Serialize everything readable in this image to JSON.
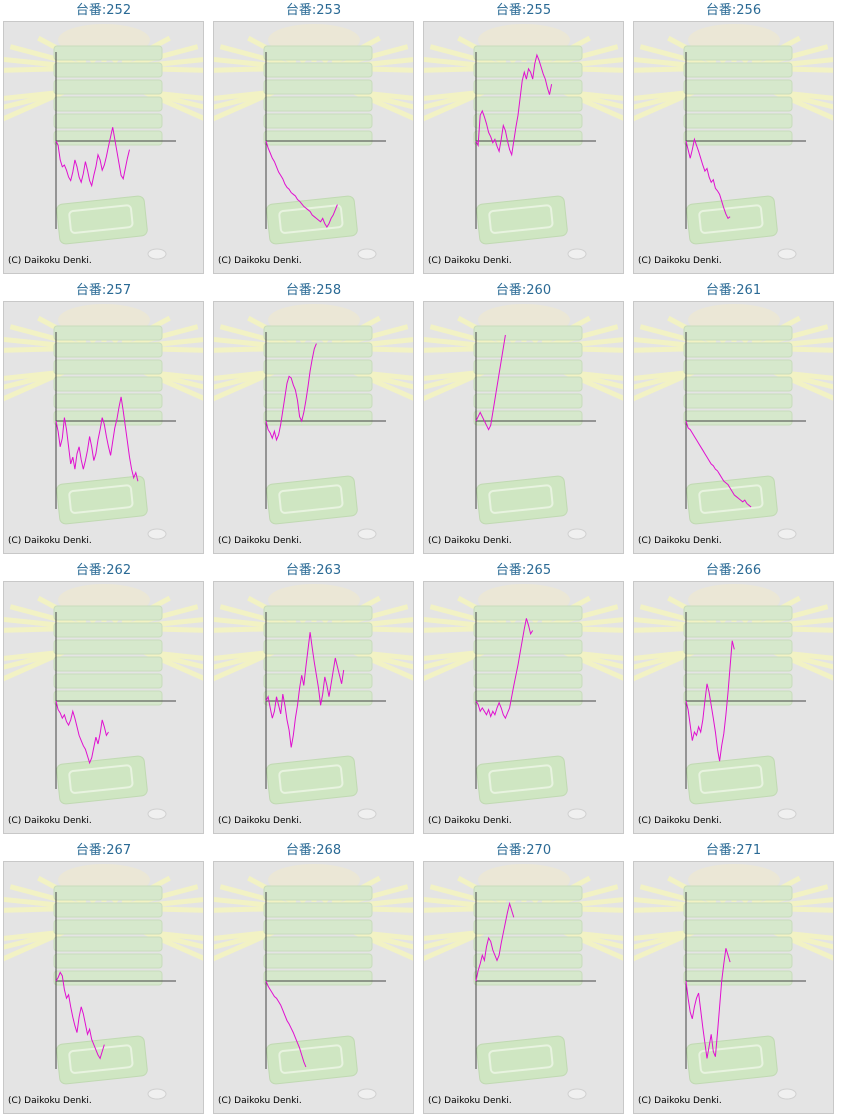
{
  "cell_title_prefix": "台番:",
  "copyright": "(C) Daikoku Denki.",
  "colors": {
    "title": "#2a6a95",
    "line": "#e010d0",
    "axis": "#444444",
    "panel": "#e4e4e4"
  },
  "chart_data": [
    {
      "type": "line",
      "title": "台番:252",
      "values": [
        0,
        -0.05,
        -0.22,
        -0.3,
        -0.28,
        -0.34,
        -0.42,
        -0.46,
        -0.36,
        -0.22,
        -0.3,
        -0.42,
        -0.48,
        -0.38,
        -0.24,
        -0.34,
        -0.46,
        -0.52,
        -0.4,
        -0.3,
        -0.16,
        -0.22,
        -0.34,
        -0.28,
        -0.18,
        -0.06,
        0.05,
        0.16,
        0.02,
        -0.12,
        -0.26,
        -0.4,
        -0.44,
        -0.32,
        -0.2,
        -0.1
      ]
    },
    {
      "type": "line",
      "title": "台番:253",
      "values": [
        0,
        -0.08,
        -0.14,
        -0.2,
        -0.24,
        -0.3,
        -0.36,
        -0.4,
        -0.44,
        -0.5,
        -0.54,
        -0.56,
        -0.6,
        -0.62,
        -0.64,
        -0.68,
        -0.7,
        -0.73,
        -0.76,
        -0.78,
        -0.8,
        -0.82,
        -0.86,
        -0.88,
        -0.9,
        -0.92,
        -0.94,
        -0.9,
        -0.96,
        -1.0,
        -0.96,
        -0.9,
        -0.86,
        -0.8,
        -0.74
      ]
    },
    {
      "type": "line",
      "title": "台番:255",
      "values": [
        0,
        -0.05,
        0.3,
        0.35,
        0.28,
        0.2,
        0.1,
        0.05,
        -0.02,
        0.02,
        -0.06,
        -0.12,
        0.02,
        0.18,
        0.12,
        0.0,
        -0.1,
        -0.16,
        0.0,
        0.16,
        0.3,
        0.5,
        0.7,
        0.8,
        0.72,
        0.84,
        0.8,
        0.72,
        0.9,
        1.0,
        0.94,
        0.86,
        0.78,
        0.72,
        0.62,
        0.54,
        0.66
      ]
    },
    {
      "type": "line",
      "title": "台番:256",
      "values": [
        0,
        -0.1,
        -0.2,
        -0.1,
        0.02,
        -0.05,
        -0.12,
        -0.2,
        -0.28,
        -0.35,
        -0.32,
        -0.42,
        -0.48,
        -0.45,
        -0.55,
        -0.58,
        -0.62,
        -0.7,
        -0.78,
        -0.85,
        -0.9,
        -0.88
      ]
    },
    {
      "type": "line",
      "title": "台番:257",
      "values": [
        0,
        -0.12,
        -0.3,
        -0.2,
        0.04,
        -0.1,
        -0.3,
        -0.5,
        -0.42,
        -0.56,
        -0.38,
        -0.3,
        -0.45,
        -0.56,
        -0.46,
        -0.34,
        -0.18,
        -0.3,
        -0.46,
        -0.38,
        -0.22,
        -0.1,
        0.04,
        -0.04,
        -0.18,
        -0.3,
        -0.4,
        -0.24,
        -0.08,
        0.02,
        0.16,
        0.28,
        0.12,
        -0.06,
        -0.24,
        -0.42,
        -0.56,
        -0.66,
        -0.6,
        -0.7
      ]
    },
    {
      "type": "line",
      "title": "台番:258",
      "values": [
        0,
        -0.1,
        -0.14,
        -0.2,
        -0.12,
        -0.22,
        -0.16,
        -0.04,
        0.12,
        0.28,
        0.44,
        0.52,
        0.5,
        0.42,
        0.36,
        0.24,
        0.05,
        0.0,
        0.1,
        0.24,
        0.4,
        0.58,
        0.72,
        0.84,
        0.9
      ]
    },
    {
      "type": "line",
      "title": "台番:260",
      "values": [
        0,
        0.05,
        0.1,
        0.05,
        0.0,
        -0.05,
        -0.1,
        -0.05,
        0.1,
        0.25,
        0.4,
        0.55,
        0.7,
        0.85,
        1.0
      ]
    },
    {
      "type": "line",
      "title": "台番:261",
      "values": [
        0,
        -0.08,
        -0.1,
        -0.14,
        -0.18,
        -0.22,
        -0.26,
        -0.3,
        -0.34,
        -0.38,
        -0.42,
        -0.46,
        -0.5,
        -0.52,
        -0.56,
        -0.58,
        -0.62,
        -0.66,
        -0.7,
        -0.72,
        -0.74,
        -0.78,
        -0.82,
        -0.86,
        -0.88,
        -0.9,
        -0.92,
        -0.94,
        -0.92,
        -0.96,
        -0.98,
        -1.0
      ]
    },
    {
      "type": "line",
      "title": "台番:262",
      "values": [
        0,
        -0.1,
        -0.14,
        -0.2,
        -0.16,
        -0.24,
        -0.28,
        -0.22,
        -0.12,
        -0.2,
        -0.3,
        -0.4,
        -0.46,
        -0.52,
        -0.56,
        -0.64,
        -0.72,
        -0.66,
        -0.54,
        -0.42,
        -0.5,
        -0.38,
        -0.22,
        -0.3,
        -0.4,
        -0.36
      ]
    },
    {
      "type": "line",
      "title": "台番:263",
      "values": [
        0,
        0.05,
        -0.08,
        -0.2,
        -0.12,
        0.05,
        -0.05,
        -0.15,
        0.08,
        -0.05,
        -0.22,
        -0.34,
        -0.54,
        -0.4,
        -0.2,
        -0.05,
        0.15,
        0.3,
        0.18,
        0.4,
        0.6,
        0.8,
        0.62,
        0.45,
        0.3,
        0.15,
        -0.05,
        0.08,
        0.28,
        0.18,
        0.05,
        0.2,
        0.35,
        0.5,
        0.4,
        0.3,
        0.2,
        0.36
      ]
    },
    {
      "type": "line",
      "title": "台番:265",
      "values": [
        0,
        -0.04,
        -0.12,
        -0.08,
        -0.12,
        -0.16,
        -0.1,
        -0.18,
        -0.12,
        -0.16,
        -0.08,
        -0.02,
        -0.08,
        -0.16,
        -0.2,
        -0.14,
        -0.08,
        0.05,
        0.18,
        0.3,
        0.42,
        0.56,
        0.7,
        0.84,
        0.96,
        0.88,
        0.78,
        0.82
      ]
    },
    {
      "type": "line",
      "title": "台番:266",
      "values": [
        0,
        -0.1,
        -0.28,
        -0.46,
        -0.36,
        -0.4,
        -0.3,
        -0.36,
        -0.22,
        0.0,
        0.2,
        0.1,
        -0.05,
        -0.2,
        -0.36,
        -0.56,
        -0.7,
        -0.52,
        -0.38,
        -0.16,
        0.1,
        0.4,
        0.7,
        0.6
      ]
    },
    {
      "type": "line",
      "title": "台番:267",
      "values": [
        0,
        0.04,
        0.1,
        0.06,
        -0.1,
        -0.2,
        -0.16,
        -0.3,
        -0.42,
        -0.52,
        -0.6,
        -0.42,
        -0.3,
        -0.38,
        -0.5,
        -0.62,
        -0.56,
        -0.68,
        -0.74,
        -0.8,
        -0.86,
        -0.9,
        -0.82,
        -0.74
      ]
    },
    {
      "type": "line",
      "title": "台番:268",
      "values": [
        0,
        -0.06,
        -0.1,
        -0.14,
        -0.18,
        -0.2,
        -0.24,
        -0.28,
        -0.34,
        -0.4,
        -0.46,
        -0.5,
        -0.55,
        -0.6,
        -0.66,
        -0.72,
        -0.78,
        -0.86,
        -0.94,
        -1.0
      ]
    },
    {
      "type": "line",
      "title": "台番:270",
      "values": [
        0,
        0.12,
        0.2,
        0.3,
        0.24,
        0.4,
        0.5,
        0.46,
        0.36,
        0.3,
        0.24,
        0.3,
        0.44,
        0.56,
        0.68,
        0.8,
        0.9,
        0.82,
        0.74
      ]
    },
    {
      "type": "line",
      "title": "台番:271",
      "values": [
        0,
        -0.2,
        -0.36,
        -0.44,
        -0.3,
        -0.2,
        -0.14,
        -0.34,
        -0.54,
        -0.72,
        -0.9,
        -0.76,
        -0.62,
        -0.82,
        -0.88,
        -0.6,
        -0.3,
        0.0,
        0.2,
        0.38,
        0.3,
        0.22
      ]
    }
  ]
}
